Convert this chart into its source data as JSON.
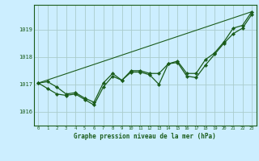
{
  "xlabel": "Graphe pression niveau de la mer (hPa)",
  "background_color": "#cceeff",
  "grid_color": "#aacccc",
  "line_color": "#1a5c1a",
  "xlim": [
    -0.5,
    23.5
  ],
  "ylim": [
    1015.5,
    1019.9
  ],
  "yticks": [
    1016,
    1017,
    1018,
    1019
  ],
  "xticks": [
    0,
    1,
    2,
    3,
    4,
    5,
    6,
    7,
    8,
    9,
    10,
    11,
    12,
    13,
    14,
    15,
    16,
    17,
    18,
    19,
    20,
    21,
    22,
    23
  ],
  "series_main_x": [
    0,
    1,
    2,
    3,
    4,
    5,
    6,
    7,
    8,
    9,
    10,
    11,
    12,
    13,
    14,
    15,
    16,
    17,
    18,
    19,
    20,
    21,
    22,
    23
  ],
  "series_main_y": [
    1017.05,
    1016.85,
    1016.65,
    1016.6,
    1016.65,
    1016.45,
    1016.25,
    1016.9,
    1017.3,
    1017.15,
    1017.45,
    1017.45,
    1017.35,
    1017.0,
    1017.75,
    1017.8,
    1017.3,
    1017.25,
    1017.7,
    1018.1,
    1018.5,
    1018.85,
    1019.05,
    1019.55
  ],
  "series_upper_x": [
    0,
    1,
    2,
    3,
    4,
    5,
    6,
    7,
    8,
    9,
    10,
    11,
    12,
    13,
    14,
    15,
    16,
    17,
    18,
    19,
    20,
    21,
    22,
    23
  ],
  "series_upper_y": [
    1017.05,
    1017.1,
    1016.9,
    1016.65,
    1016.7,
    1016.5,
    1016.35,
    1017.05,
    1017.4,
    1017.15,
    1017.5,
    1017.5,
    1017.4,
    1017.4,
    1017.75,
    1017.85,
    1017.4,
    1017.4,
    1017.9,
    1018.15,
    1018.55,
    1019.05,
    1019.15,
    1019.65
  ],
  "series_trend_x": [
    0,
    23
  ],
  "series_trend_y": [
    1017.05,
    1019.65
  ]
}
